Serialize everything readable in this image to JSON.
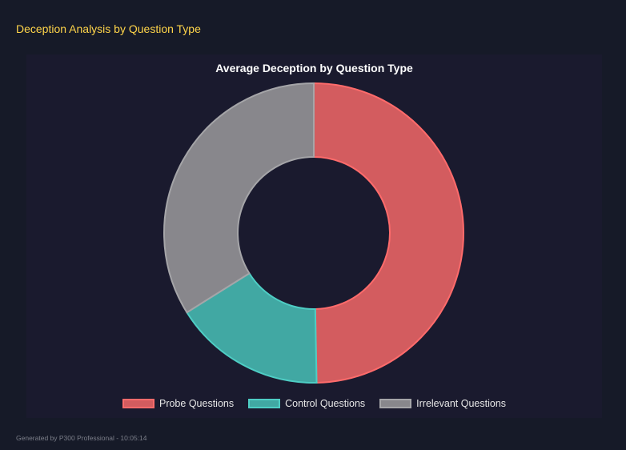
{
  "page": {
    "heading": "Deception Analysis by Question Type",
    "footer": "Generated by P300 Professional - 10:05:14"
  },
  "chart_data": {
    "type": "pie",
    "donut": true,
    "title": "Average Deception by Question Type",
    "categories": [
      "Probe Questions",
      "Control Questions",
      "Irrelevant Questions"
    ],
    "values": [
      49.7,
      16.4,
      33.9
    ],
    "colors": [
      "#d35c5f",
      "#41a8a3",
      "#88878c"
    ],
    "border_colors": [
      "#ff6b6b",
      "#4ecdc4",
      "#a5a5a8"
    ],
    "legend_position": "bottom"
  }
}
